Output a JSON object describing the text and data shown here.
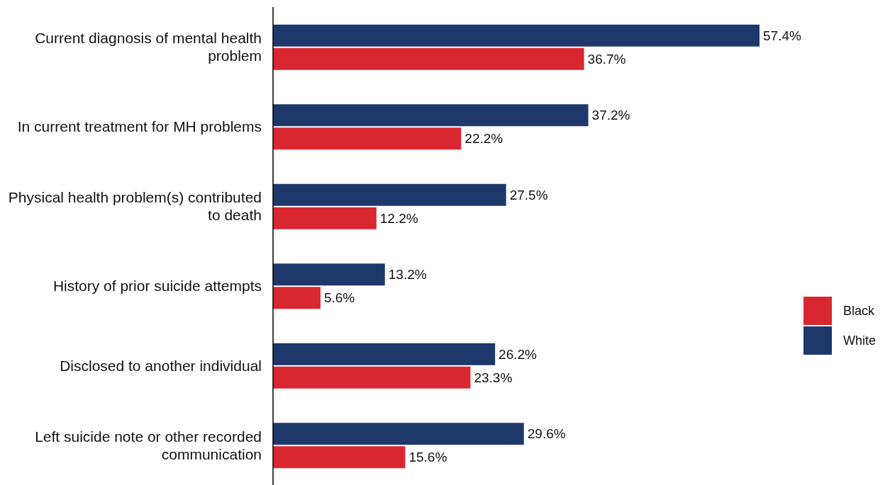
{
  "chart_data": {
    "type": "bar",
    "orientation": "horizontal",
    "legend": "right",
    "categories": [
      "Current diagnosis of mental health problem",
      "In current treatment for MH problems",
      "Physical health problem(s) contributed to death",
      "History of prior suicide attempts",
      "Disclosed to another individual",
      "Left suicide note or other recorded communication"
    ],
    "series": [
      {
        "name": "White",
        "color": "#1f386c",
        "values": [
          57.4,
          37.2,
          27.5,
          13.2,
          26.2,
          29.6
        ],
        "value_labels": [
          "57.4%",
          "37.2%",
          "27.5%",
          "13.2%",
          "26.2%",
          "29.6%"
        ]
      },
      {
        "name": "Black",
        "color": "#d92732",
        "values": [
          36.7,
          22.2,
          12.2,
          5.6,
          23.3,
          15.6
        ],
        "value_labels": [
          "36.7%",
          "22.2%",
          "12.2%",
          "5.6%",
          "23.3%",
          "15.6%"
        ]
      }
    ]
  }
}
